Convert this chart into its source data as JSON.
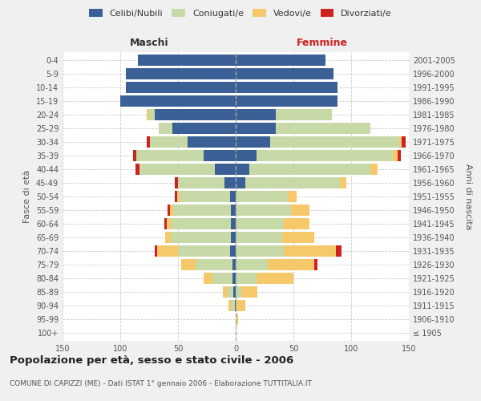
{
  "age_groups": [
    "100+",
    "95-99",
    "90-94",
    "85-89",
    "80-84",
    "75-79",
    "70-74",
    "65-69",
    "60-64",
    "55-59",
    "50-54",
    "45-49",
    "40-44",
    "35-39",
    "30-34",
    "25-29",
    "20-24",
    "15-19",
    "10-14",
    "5-9",
    "0-4"
  ],
  "birth_years": [
    "≤ 1905",
    "1906-1910",
    "1911-1915",
    "1916-1920",
    "1921-1925",
    "1926-1930",
    "1931-1935",
    "1936-1940",
    "1941-1945",
    "1946-1950",
    "1951-1955",
    "1956-1960",
    "1961-1965",
    "1966-1970",
    "1971-1975",
    "1976-1980",
    "1981-1985",
    "1986-1990",
    "1991-1995",
    "1996-2000",
    "2001-2005"
  ],
  "males_celibi": [
    0,
    0,
    1,
    2,
    3,
    3,
    5,
    4,
    4,
    4,
    5,
    10,
    18,
    28,
    42,
    55,
    70,
    100,
    95,
    95,
    85
  ],
  "males_coniugati": [
    0,
    0,
    3,
    5,
    17,
    32,
    45,
    52,
    52,
    50,
    44,
    40,
    65,
    58,
    32,
    12,
    5,
    0,
    0,
    0,
    0
  ],
  "males_vedovi": [
    0,
    0,
    2,
    4,
    8,
    12,
    18,
    5,
    4,
    3,
    2,
    0,
    0,
    0,
    0,
    0,
    2,
    0,
    0,
    0,
    0
  ],
  "males_divorziati": [
    0,
    0,
    0,
    0,
    0,
    0,
    2,
    0,
    2,
    2,
    2,
    3,
    4,
    3,
    3,
    0,
    0,
    0,
    0,
    0,
    0
  ],
  "females_nubili": [
    0,
    0,
    0,
    0,
    0,
    0,
    0,
    0,
    0,
    0,
    0,
    8,
    12,
    18,
    30,
    35,
    35,
    88,
    88,
    85,
    78
  ],
  "females_coniugate": [
    0,
    0,
    0,
    5,
    18,
    28,
    42,
    40,
    42,
    48,
    45,
    82,
    105,
    118,
    112,
    82,
    48,
    0,
    0,
    0,
    0
  ],
  "females_vedove": [
    0,
    2,
    8,
    14,
    32,
    40,
    45,
    28,
    22,
    16,
    8,
    6,
    6,
    4,
    2,
    0,
    0,
    0,
    0,
    0,
    0
  ],
  "females_divorziate": [
    0,
    0,
    0,
    0,
    0,
    3,
    5,
    0,
    0,
    0,
    0,
    0,
    0,
    3,
    3,
    0,
    0,
    0,
    0,
    0,
    0
  ],
  "color_celibi": "#3a6096",
  "color_coniugati": "#c8d9a8",
  "color_vedovi": "#f5c96a",
  "color_divorziati": "#cc2222",
  "xlim": 150,
  "bg_color": "#f0f0f0",
  "plot_bg": "#ffffff",
  "title": "Popolazione per età, sesso e stato civile - 2006",
  "subtitle": "COMUNE DI CAPIZZI (ME) - Dati ISTAT 1° gennaio 2006 - Elaborazione TUTTITALIA.IT",
  "ylabel": "Fasce di età",
  "ylabel_right": "Anni di nascita",
  "header_left": "Maschi",
  "header_right": "Femmine"
}
